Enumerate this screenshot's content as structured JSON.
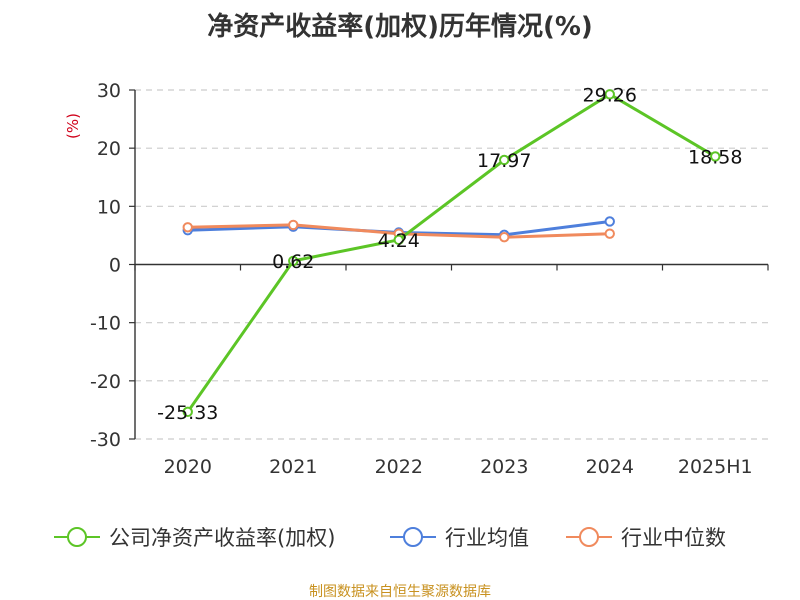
{
  "chart_data": {
    "type": "line",
    "title": "净资产收益率(加权)历年情况(%)",
    "ylabel": "(%)",
    "xlabel": "",
    "categories": [
      "2020",
      "2021",
      "2022",
      "2023",
      "2024",
      "2025H1"
    ],
    "ylim": [
      -30,
      30
    ],
    "yticks": [
      30,
      20,
      10,
      0,
      -10,
      -20,
      -30
    ],
    "grid": true,
    "legend_position": "bottom",
    "series": [
      {
        "name": "公司净资产收益率(加权)",
        "color": "#5cc526",
        "values": [
          -25.33,
          0.62,
          4.24,
          17.97,
          29.26,
          18.58
        ],
        "data_labels": [
          "-25.33",
          "0.62",
          "4.24",
          "17.97",
          "29.26",
          "18.58"
        ]
      },
      {
        "name": "行业均值",
        "color": "#4e7fdc",
        "values": [
          5.9,
          6.5,
          5.5,
          5.1,
          7.4,
          null
        ]
      },
      {
        "name": "行业中位数",
        "color": "#f08a5d",
        "values": [
          6.4,
          6.8,
          5.3,
          4.7,
          5.3,
          null
        ]
      }
    ]
  },
  "footer": {
    "source": "制图数据来自恒生聚源数据库"
  }
}
